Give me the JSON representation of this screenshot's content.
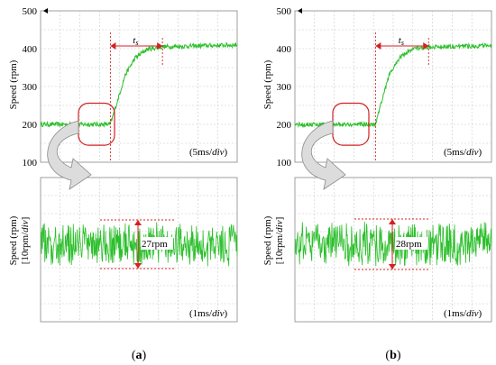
{
  "chart_data": [
    {
      "panel": "a",
      "type": "line",
      "ylabel": "Speed (rpm)",
      "ylim": [
        100,
        500
      ],
      "yticks": [
        "500",
        "400",
        "300",
        "200",
        "100"
      ],
      "grid": true,
      "scale_note_prefix": "(5ms/",
      "scale_note_unit": "div",
      "scale_note_suffix": ")",
      "settling_label_main": "t",
      "settling_label_sub": "s",
      "series": [
        {
          "x_div": [
            0,
            3.55,
            3.9,
            4.3,
            4.8,
            5.4,
            6.2,
            10
          ],
          "values": [
            200,
            200,
            260,
            330,
            375,
            398,
            405,
            410
          ]
        }
      ],
      "zoom": {
        "ylabel_main": "Speed (rpm)",
        "ylabel_scale_prefix": "[10rpm/",
        "ylabel_scale_unit": "div",
        "ylabel_scale_suffix": "]",
        "ripple_label": "27rpm",
        "ripple_rpm": 27,
        "scale_note_prefix": "(1ms/",
        "scale_note_unit": "div",
        "scale_note_suffix": ")"
      },
      "caption": "a"
    },
    {
      "panel": "b",
      "type": "line",
      "ylabel": "Speed (rpm)",
      "ylim": [
        100,
        500
      ],
      "yticks": [
        "500",
        "400",
        "300",
        "200",
        "100"
      ],
      "grid": true,
      "scale_note_prefix": "(5ms/",
      "scale_note_unit": "div",
      "scale_note_suffix": ")",
      "settling_label_main": "t",
      "settling_label_sub": "s",
      "series": [
        {
          "x_div": [
            0,
            4.1,
            4.4,
            4.8,
            5.3,
            5.9,
            6.8,
            10
          ],
          "values": [
            200,
            200,
            260,
            330,
            375,
            398,
            405,
            408
          ]
        }
      ],
      "zoom": {
        "ylabel_main": "Speed (rpm)",
        "ylabel_scale_prefix": "[10rpm/",
        "ylabel_scale_unit": "div",
        "ylabel_scale_suffix": "]",
        "ripple_label": "28rpm",
        "ripple_rpm": 28,
        "scale_note_prefix": "(1ms/",
        "scale_note_unit": "div",
        "scale_note_suffix": ")"
      },
      "caption": "b"
    }
  ],
  "colors": {
    "trace": "#2bbf2b",
    "marker": "#d42020",
    "grid": "#c8c8c8",
    "frame": "#888888"
  }
}
